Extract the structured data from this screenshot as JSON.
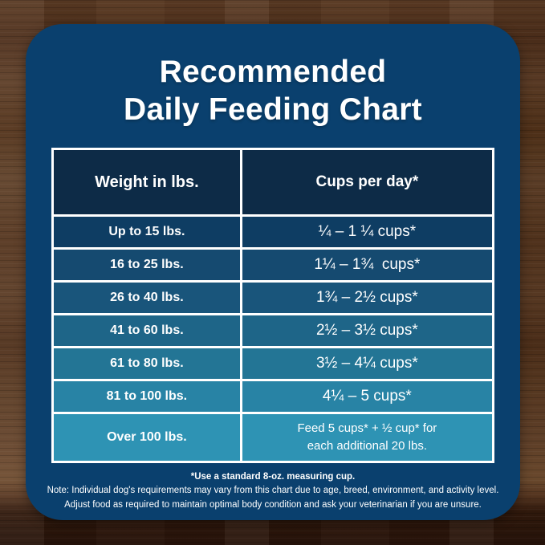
{
  "card": {
    "background_color": "#0a406e",
    "title_line1": "Recommended",
    "title_line2": "Daily Feeding Chart"
  },
  "table": {
    "header_color": "#0d2b47",
    "border_color": "#ffffff",
    "text_color": "#ffffff",
    "headers": {
      "weight": "Weight in lbs.",
      "cups": "Cups per day*"
    },
    "rows": [
      {
        "weight": "Up to 15 lbs.",
        "cups": "¼ – 1 ¼ cups*",
        "color": "#0e3d63"
      },
      {
        "weight": "16 to 25 lbs.",
        "cups": "1¼ – 1¾  cups*",
        "color": "#154a70"
      },
      {
        "weight": "26 to 40 lbs.",
        "cups": "1¾ – 2½ cups*",
        "color": "#19557b"
      },
      {
        "weight": "41 to 60 lbs.",
        "cups": "2½ – 3½ cups*",
        "color": "#1e6588"
      },
      {
        "weight": "61 to 80 lbs.",
        "cups": "3½ – 4¼ cups*",
        "color": "#237595"
      },
      {
        "weight": "81 to 100 lbs.",
        "cups": "4¼ – 5 cups*",
        "color": "#2883a5"
      },
      {
        "weight": "Over 100 lbs.",
        "cups": "Feed 5 cups* + ½ cup* for\neach additional 20 lbs.",
        "color": "#2e93b4"
      }
    ]
  },
  "footnotes": {
    "line1": "*Use a standard 8-oz. measuring cup.",
    "line2": "Note: Individual dog's requirements may vary from this chart due to age, breed, environment, and activity level.",
    "line3": "Adjust food as required to maintain optimal body condition and ask your veterinarian if you are unsure."
  },
  "chart_data": {
    "type": "table",
    "title": "Recommended Daily Feeding Chart",
    "columns": [
      "Weight in lbs.",
      "Cups per day*"
    ],
    "rows": [
      [
        "Up to 15 lbs.",
        "¼ – 1 ¼ cups*"
      ],
      [
        "16 to 25 lbs.",
        "1¼ – 1¾ cups*"
      ],
      [
        "26 to 40 lbs.",
        "1¾ – 2½ cups*"
      ],
      [
        "41 to 60 lbs.",
        "2½ – 3½ cups*"
      ],
      [
        "61 to 80 lbs.",
        "3½ – 4¼ cups*"
      ],
      [
        "81 to 100 lbs.",
        "4¼ – 5 cups*"
      ],
      [
        "Over 100 lbs.",
        "Feed 5 cups* + ½ cup* for each additional 20 lbs."
      ]
    ],
    "footnote": "*Use a standard 8-oz. measuring cup."
  }
}
